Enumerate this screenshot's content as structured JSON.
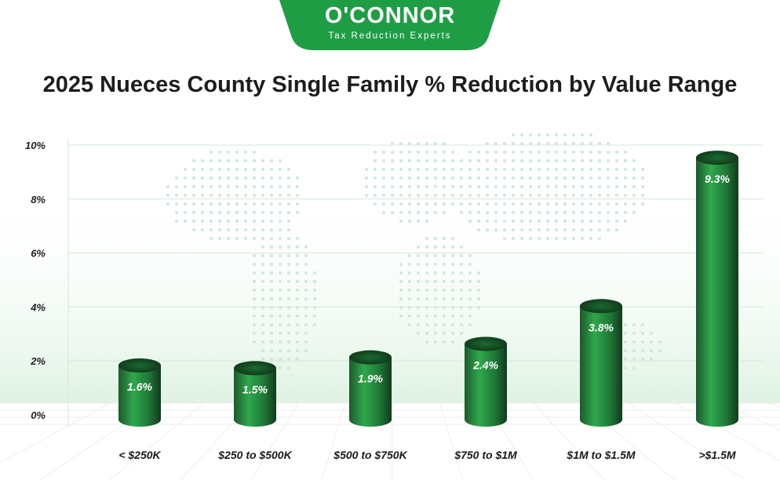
{
  "logo": {
    "name": "O'CONNOR",
    "tagline": "Tax Reduction Experts"
  },
  "colors": {
    "brand_green": "#1f9d45",
    "bar_dark": "#14401f",
    "bar_light": "#2ea84a",
    "grid": "#cfe6d4"
  },
  "chart_data": {
    "type": "bar",
    "title": "2025 Nueces County Single Family % Reduction by Value Range",
    "xlabel": "",
    "ylabel": "",
    "categories": [
      "< $250K",
      "$250 to $500K",
      "$500 to $750K",
      "$750 to $1M",
      "$1M to $1.5M",
      ">$1.5M"
    ],
    "values": [
      1.6,
      1.5,
      1.9,
      2.4,
      3.8,
      9.3
    ],
    "data_labels": [
      "1.6%",
      "1.5%",
      "1.9%",
      "2.4%",
      "3.8%",
      "9.3%"
    ],
    "yticks": [
      "0%",
      "2%",
      "4%",
      "6%",
      "8%",
      "10%"
    ],
    "ylim": [
      0,
      10
    ],
    "grid": true,
    "legend": "none"
  }
}
